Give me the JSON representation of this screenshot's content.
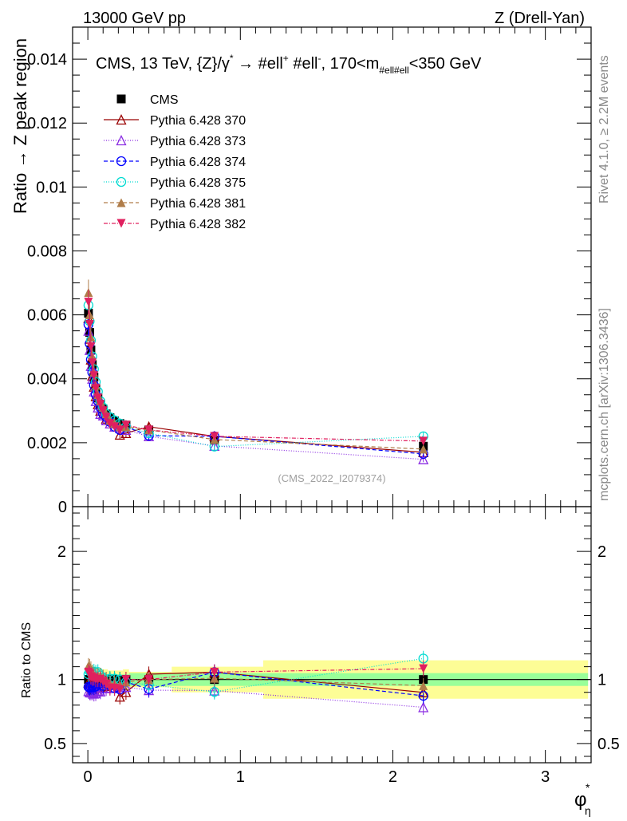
{
  "header": {
    "energy": "13000 GeV pp",
    "process": "Z (Drell-Yan)"
  },
  "side_labels": {
    "rivet": "Rivet 4.1.0, ≥ 2.2M events",
    "mcplots": "mcplots.cern.ch [arXiv:1306.3436]"
  },
  "watermark": "(CMS_2022_I2079374)",
  "colors": {
    "cms": "#000000",
    "p370": "#990000",
    "p373": "#8a2be2",
    "p374": "#0000ff",
    "p375": "#00dbd1",
    "p381": "#b07d4a",
    "p382": "#e0205f",
    "band_yellow": "#fdfd96",
    "band_green": "#99ff99"
  },
  "chart_data": {
    "type": "line",
    "title": "CMS, 13 TeV, {Z}/γ* → #ell⁺ #ell⁻, 170<m#ell#ell<350 GeV",
    "title_parts": {
      "main": "CMS, 13 TeV, {Z}/γ",
      "star": "*",
      "arrow": " →  #ell",
      "plus": "+",
      "mid": " #ell",
      "minus": "-",
      "tail": ", 170<m",
      "sub": "#ell#ell",
      "end": "<350 GeV"
    },
    "xlabel": "φ",
    "xlabel_sup": "*",
    "xlabel_sub": "η",
    "ylabel": "Ratio → Z peak region",
    "ratio_ylabel": "Ratio to CMS",
    "xlim": [
      -0.1,
      3.3
    ],
    "ylim": [
      0,
      0.015
    ],
    "ratio_ylim": [
      0.35,
      2.35
    ],
    "x_ticks": [
      "0",
      "1",
      "2",
      "3"
    ],
    "y_ticks": [
      "0",
      "0.002",
      "0.004",
      "0.006",
      "0.008",
      "0.01",
      "0.012",
      "0.014"
    ],
    "ratio_ticks": [
      "0.5",
      "1",
      "2"
    ],
    "x": [
      0.004,
      0.012,
      0.02,
      0.029,
      0.04,
      0.052,
      0.066,
      0.082,
      0.1,
      0.12,
      0.145,
      0.175,
      0.21,
      0.25,
      0.4,
      0.83,
      2.2
    ],
    "band_edges": [
      0.0,
      0.008,
      0.016,
      0.024,
      0.034,
      0.046,
      0.058,
      0.074,
      0.09,
      0.11,
      0.13,
      0.16,
      0.19,
      0.23,
      0.27,
      0.55,
      1.15,
      3.28
    ],
    "band_yellow": [
      0.12,
      0.12,
      0.12,
      0.11,
      0.1,
      0.1,
      0.09,
      0.09,
      0.08,
      0.08,
      0.07,
      0.07,
      0.07,
      0.08,
      0.06,
      0.1,
      0.15
    ],
    "band_green": [
      0.05,
      0.05,
      0.05,
      0.05,
      0.05,
      0.04,
      0.04,
      0.04,
      0.04,
      0.04,
      0.04,
      0.04,
      0.04,
      0.04,
      0.05,
      0.05,
      0.05
    ],
    "series": [
      {
        "name": "CMS",
        "key": "cms",
        "marker": "square",
        "dash": "none",
        "values": [
          0.00605,
          0.00545,
          0.0049,
          0.00445,
          0.00405,
          0.0037,
          0.0034,
          0.0032,
          0.00305,
          0.0029,
          0.00278,
          0.00268,
          0.0026,
          0.00255,
          0.0024,
          0.00208,
          0.00189
        ]
      },
      {
        "name": "Pythia 6.428 370",
        "key": "p370",
        "marker": "triangle-open",
        "dash": "none",
        "values": [
          0.0059,
          0.00525,
          0.0046,
          0.0041,
          0.00375,
          0.00345,
          0.0032,
          0.003,
          0.0029,
          0.00275,
          0.0027,
          0.0026,
          0.00225,
          0.0023,
          0.0025,
          0.0022,
          0.0017
        ]
      },
      {
        "name": "Pythia 6.428 373",
        "key": "p373",
        "marker": "triangle-open",
        "dash": "1,2",
        "values": [
          0.0055,
          0.0049,
          0.0044,
          0.004,
          0.0036,
          0.0033,
          0.0031,
          0.0029,
          0.00285,
          0.0027,
          0.0026,
          0.0025,
          0.00245,
          0.0024,
          0.0022,
          0.0019,
          0.00148
        ]
      },
      {
        "name": "Pythia 6.428 374",
        "key": "p374",
        "marker": "circle-open",
        "dash": "5,3",
        "values": [
          0.0057,
          0.0051,
          0.0046,
          0.0042,
          0.0038,
          0.0035,
          0.0033,
          0.0031,
          0.0029,
          0.0028,
          0.00265,
          0.0025,
          0.0024,
          0.0025,
          0.00222,
          0.0022,
          0.00165
        ]
      },
      {
        "name": "Pythia 6.428 375",
        "key": "p375",
        "marker": "circle-open",
        "dash": "1,2",
        "values": [
          0.0063,
          0.0058,
          0.0052,
          0.0047,
          0.0043,
          0.0039,
          0.0036,
          0.0033,
          0.0031,
          0.0029,
          0.0028,
          0.0027,
          0.0026,
          0.0025,
          0.0023,
          0.00188,
          0.0022
        ]
      },
      {
        "name": "Pythia 6.428 381",
        "key": "p381",
        "marker": "triangle-filled",
        "dash": "5,3",
        "values": [
          0.0067,
          0.006,
          0.0053,
          0.0047,
          0.0042,
          0.0038,
          0.0035,
          0.0033,
          0.0031,
          0.0029,
          0.0027,
          0.0026,
          0.0025,
          0.0025,
          0.0024,
          0.0021,
          0.0018
        ]
      },
      {
        "name": "Pythia 6.428 382",
        "key": "p382",
        "marker": "triangle-down-filled",
        "dash": "5,2,1,2",
        "values": [
          0.0064,
          0.0057,
          0.005,
          0.0045,
          0.0041,
          0.0037,
          0.0034,
          0.0032,
          0.003,
          0.0028,
          0.0026,
          0.0025,
          0.0024,
          0.00255,
          0.0024,
          0.0022,
          0.00205
        ]
      }
    ]
  }
}
